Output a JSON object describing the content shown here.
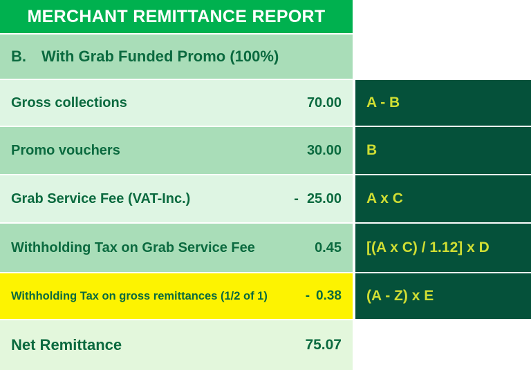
{
  "title": "MERCHANT REMITTANCE REPORT",
  "section": {
    "index": "B.",
    "label": "With Grab Funded Promo (100%)"
  },
  "rows": [
    {
      "label": "Gross collections",
      "sign": "",
      "amount": "70.00",
      "formula": "A - B"
    },
    {
      "label": "Promo vouchers",
      "sign": "",
      "amount": "30.00",
      "formula": "B"
    },
    {
      "label": "Grab Service Fee (VAT-Inc.)",
      "sign": "-",
      "amount": "25.00",
      "formula": "A x C"
    },
    {
      "label": "Withholding Tax on Grab Service Fee",
      "sign": "",
      "amount": "0.45",
      "formula": "[(A x C) / 1.12] x D"
    },
    {
      "label": "Withholding Tax on gross remittances (1/2 of 1)",
      "sign": "-",
      "amount": "0.38",
      "formula": "(A - Z) x E",
      "highlighted": true
    }
  ],
  "total_row": {
    "label": "Net Remittance",
    "amount": "75.07"
  },
  "colors": {
    "brand_green": "#00b14f",
    "pale_green": "#def5e3",
    "medium_green": "#a9ddb8",
    "dark_green": "#05513a",
    "highlight_yellow": "#fdf301",
    "text_green": "#0b6a3f",
    "formula_text": "#d0de33",
    "net_green": "#e3f7dc"
  }
}
